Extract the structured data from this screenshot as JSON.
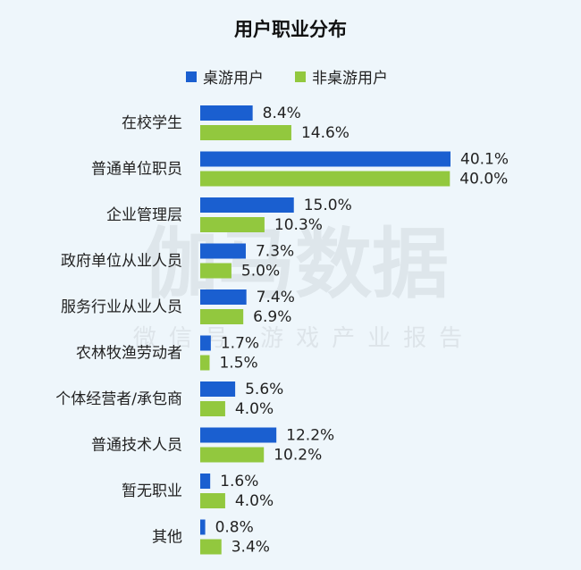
{
  "chart_data": {
    "type": "bar",
    "orientation": "horizontal",
    "title": "用户职业分布",
    "categories": [
      "在校学生",
      "普通单位职员",
      "企业管理层",
      "政府单位从业人员",
      "服务行业从业人员",
      "农林牧渔劳动者",
      "个体经营者/承包商",
      "普通技术人员",
      "暂无职业",
      "其他"
    ],
    "series": [
      {
        "name": "桌游用户",
        "color": "#1a5fd0",
        "values": [
          8.4,
          40.1,
          15.0,
          7.3,
          7.4,
          1.7,
          5.6,
          12.2,
          1.6,
          0.8
        ],
        "labels": [
          "8.4%",
          "40.1%",
          "15.0%",
          "7.3%",
          "7.4%",
          "1.7%",
          "5.6%",
          "12.2%",
          "1.6%",
          "0.8%"
        ]
      },
      {
        "name": "非桌游用户",
        "color": "#92c83e",
        "values": [
          14.6,
          40.0,
          10.3,
          5.0,
          6.9,
          1.5,
          4.0,
          10.2,
          4.0,
          3.4
        ],
        "labels": [
          "14.6%",
          "40.0%",
          "10.3%",
          "5.0%",
          "6.9%",
          "1.5%",
          "4.0%",
          "10.2%",
          "4.0%",
          "3.4%"
        ]
      }
    ],
    "xlim": [
      0,
      40.1
    ],
    "unit": "%",
    "grid": false,
    "legend": "top-center"
  },
  "watermark": {
    "main": "伽马数据",
    "sub": "微信号 游戏产业报告"
  }
}
